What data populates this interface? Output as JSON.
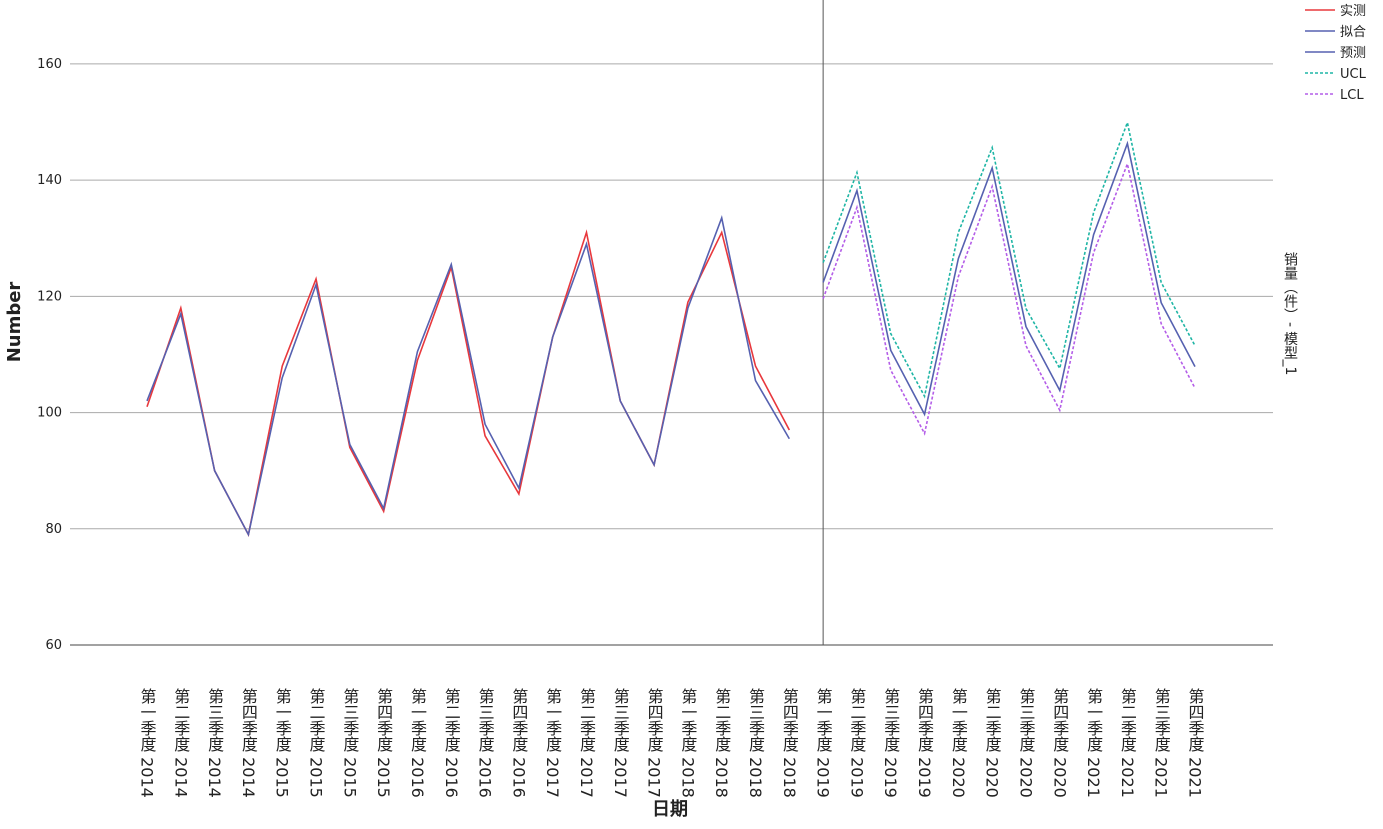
{
  "chart_data": {
    "type": "line",
    "x_label": "日期",
    "y_label": "Number",
    "right_label": "销量（件）- 模型_1",
    "categories": [
      "第一季度 2014",
      "第二季度 2014",
      "第三季度 2014",
      "第四季度 2014",
      "第一季度 2015",
      "第二季度 2015",
      "第三季度 2015",
      "第四季度 2015",
      "第一季度 2016",
      "第二季度 2016",
      "第三季度 2016",
      "第四季度 2016",
      "第一季度 2017",
      "第二季度 2017",
      "第三季度 2017",
      "第四季度 2017",
      "第一季度 2018",
      "第二季度 2018",
      "第三季度 2018",
      "第四季度 2018",
      "第一季度 2019",
      "第二季度 2019",
      "第三季度 2019",
      "第四季度 2019",
      "第一季度 2020",
      "第二季度 2020",
      "第三季度 2020",
      "第四季度 2020",
      "第一季度 2021",
      "第二季度 2021",
      "第三季度 2021",
      "第四季度 2021"
    ],
    "series": [
      {
        "name": "实测",
        "color": "#e8383d",
        "dashed": false,
        "values": [
          101,
          118,
          90,
          79,
          108,
          123,
          94,
          83,
          109,
          125,
          96,
          86,
          113,
          131,
          102,
          91,
          119,
          131,
          108,
          97,
          null,
          null,
          null,
          null,
          null,
          null,
          null,
          null,
          null,
          null,
          null,
          null
        ]
      },
      {
        "name": "拟合",
        "color": "#5661b0",
        "dashed": false,
        "values": [
          102,
          117,
          90,
          79,
          106,
          122,
          94.5,
          83.5,
          110.5,
          125.5,
          98,
          87,
          113,
          129,
          102,
          91,
          118,
          133.5,
          105.5,
          95.5,
          null,
          null,
          null,
          null,
          null,
          null,
          null,
          null,
          null,
          null,
          null,
          null
        ]
      },
      {
        "name": "预测",
        "color": "#5661b0",
        "dashed": false,
        "values": [
          null,
          null,
          null,
          null,
          null,
          null,
          null,
          null,
          null,
          null,
          null,
          null,
          null,
          null,
          null,
          null,
          null,
          null,
          null,
          null,
          122.4,
          138.2,
          110.7,
          99.7,
          126.5,
          142.1,
          114.8,
          103.8,
          130.6,
          146.3,
          118.9,
          107.9
        ]
      },
      {
        "name": "UCL",
        "color": "#1fb5a5",
        "dashed": true,
        "values": [
          null,
          null,
          null,
          null,
          null,
          null,
          null,
          null,
          null,
          null,
          null,
          null,
          null,
          null,
          null,
          null,
          null,
          null,
          null,
          null,
          125.8,
          141.3,
          113.6,
          102.8,
          131,
          145.6,
          117.9,
          107.6,
          134.4,
          149.9,
          122.4,
          111.5
        ]
      },
      {
        "name": "LCL",
        "color": "#b45ee8",
        "dashed": true,
        "values": [
          null,
          null,
          null,
          null,
          null,
          null,
          null,
          null,
          null,
          null,
          null,
          null,
          null,
          null,
          null,
          null,
          null,
          null,
          null,
          null,
          119.6,
          135.3,
          107.3,
          96.4,
          123.4,
          138.9,
          111.5,
          100.4,
          127.5,
          142.8,
          115.3,
          104.2
        ]
      }
    ],
    "ylim": [
      60,
      171
    ],
    "yticks": [
      60,
      80,
      100,
      120,
      140,
      160
    ],
    "grid": true
  }
}
